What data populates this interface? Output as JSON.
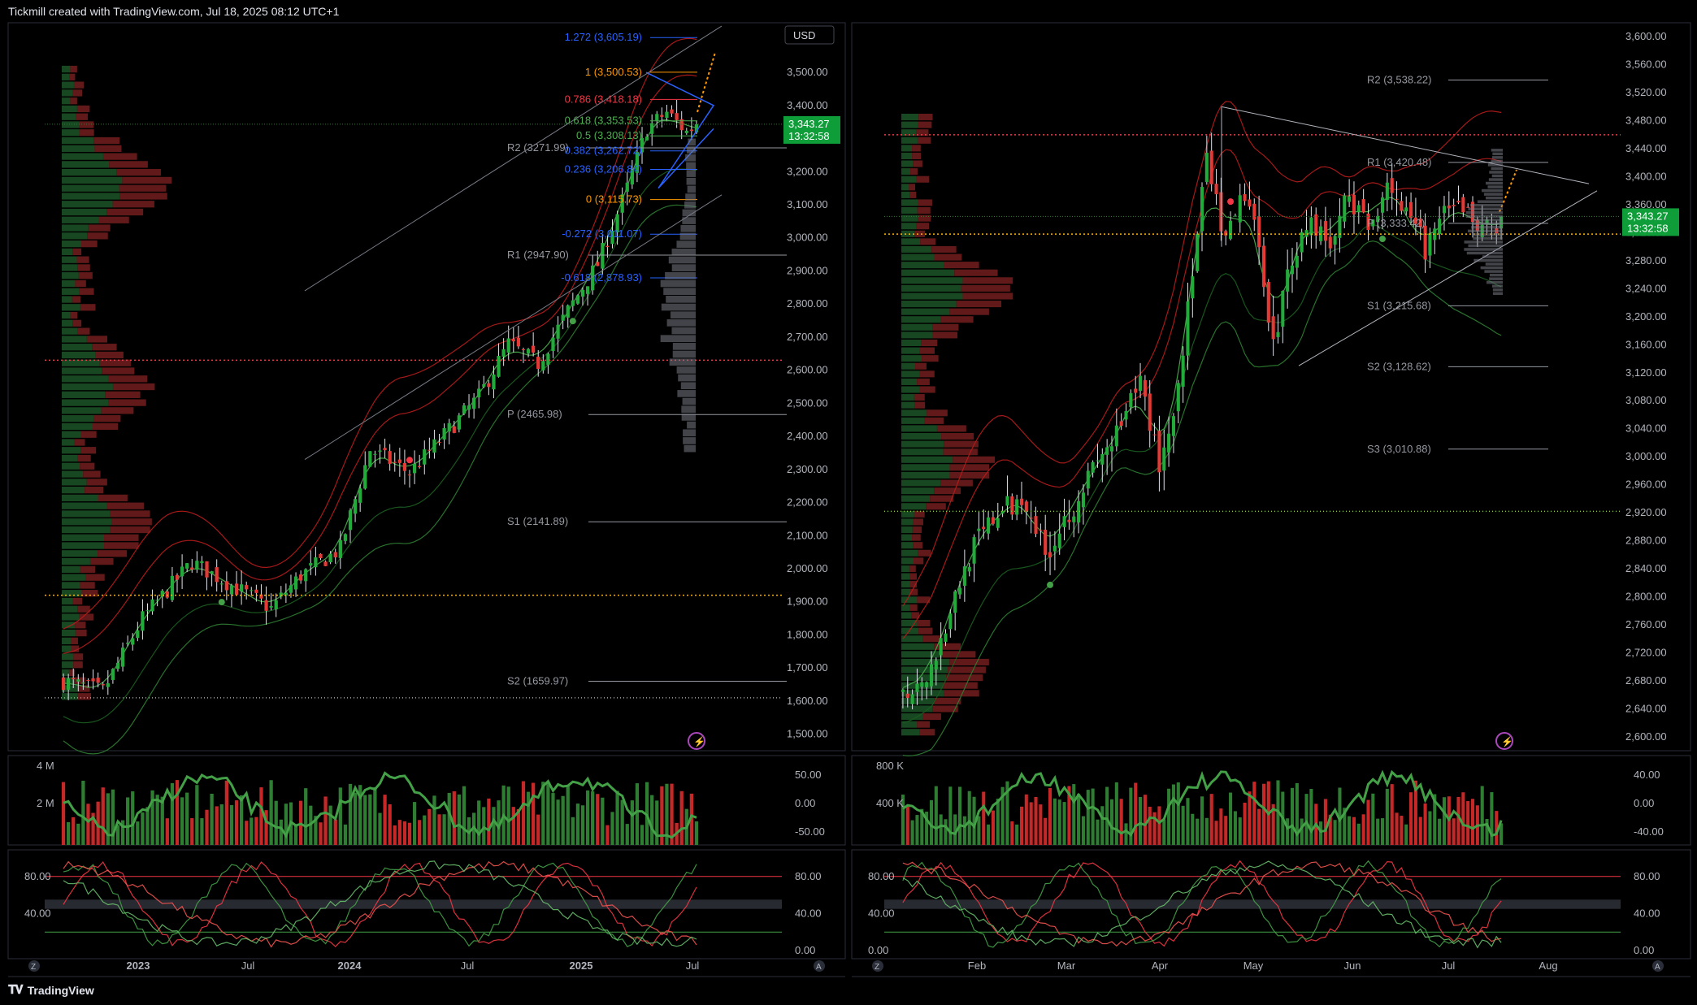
{
  "header": {
    "text": "Tickmill created with TradingView.com, Jul 18, 2025 08:12 UTC+1"
  },
  "footer": {
    "brand": "TradingView",
    "logo_icon": "tv-logo-icon"
  },
  "colors": {
    "bull": "#2e7d32",
    "bear": "#c62828",
    "bull_bright": "#22ab3a",
    "bear_bright": "#e53935",
    "fib_blue": "#2962ff",
    "fib_orange": "#ff9800",
    "fib_red": "#f23645",
    "pivot": "#9598a1",
    "price_tag": "#0f9d3a"
  },
  "chart_data": [
    {
      "panel": "left-weekly",
      "type": "candlestick",
      "currency": "USD",
      "y_ticks": [
        "1,500.00",
        "1,600.00",
        "1,700.00",
        "1,800.00",
        "1,900.00",
        "2,000.00",
        "2,100.00",
        "2,200.00",
        "2,300.00",
        "2,400.00",
        "2,500.00",
        "2,600.00",
        "2,700.00",
        "2,800.00",
        "2,900.00",
        "3,000.00",
        "3,100.00",
        "3,200.00",
        "3,300.00",
        "3,400.00",
        "3,500.00",
        "3,600.00"
      ],
      "x_ticks": [
        "2023",
        "Jul",
        "2024",
        "Jul",
        "2025",
        "Jul"
      ],
      "last_price": "3,343.27",
      "countdown": "13:32:58",
      "fib_levels": [
        {
          "label": "1.272 (3,605.19)",
          "price": 3605.19,
          "color": "#2962ff"
        },
        {
          "label": "1 (3,500.53)",
          "price": 3500.53,
          "color": "#ff9800"
        },
        {
          "label": "0.786 (3,418.18)",
          "price": 3418.18,
          "color": "#f23645"
        },
        {
          "label": "0.618 (3,353.53)",
          "price": 3353.53,
          "color": "#4caf50"
        },
        {
          "label": "0.5 (3,308.13)",
          "price": 3308.13,
          "color": "#4caf50"
        },
        {
          "label": "0.382 (3,262.72)",
          "price": 3262.72,
          "color": "#2962ff"
        },
        {
          "label": "0.236 (3,206.84)",
          "price": 3206.84,
          "color": "#2962ff"
        },
        {
          "label": "0 (3,115.73)",
          "price": 3115.73,
          "color": "#ff9800"
        },
        {
          "label": "-0.272 (3,011.07)",
          "price": 3011.07,
          "color": "#2962ff"
        },
        {
          "label": "-0.618 (2,878.93)",
          "price": 2878.93,
          "color": "#2962ff"
        }
      ],
      "pivots": [
        {
          "label": "R2 (3271.99)",
          "price": 3271.99
        },
        {
          "label": "R1 (2947.90)",
          "price": 2947.9
        },
        {
          "label": "P (2465.98)",
          "price": 2465.98
        },
        {
          "label": "S1 (2141.89)",
          "price": 2141.89
        },
        {
          "label": "S2 (1659.97)",
          "price": 1659.97
        }
      ],
      "volume_ticks": [
        "4 M",
        "2 M"
      ],
      "momentum_ticks": [
        "50.00",
        "0.00",
        "-50.00"
      ],
      "stoch_ticks": [
        "80.00",
        "40.00",
        "0.00"
      ],
      "stoch_ticks_left": [
        "80.00",
        "40.00"
      ],
      "start_price": 1660,
      "end_price": 3343.27,
      "key_points": [
        [
          0,
          1660
        ],
        [
          8,
          1630
        ],
        [
          16,
          1850
        ],
        [
          26,
          2020
        ],
        [
          34,
          1950
        ],
        [
          42,
          1880
        ],
        [
          48,
          1980
        ],
        [
          56,
          2060
        ],
        [
          62,
          2360
        ],
        [
          70,
          2290
        ],
        [
          78,
          2420
        ],
        [
          84,
          2520
        ],
        [
          90,
          2680
        ],
        [
          96,
          2620
        ],
        [
          102,
          2780
        ],
        [
          108,
          2920
        ],
        [
          114,
          3150
        ],
        [
          118,
          3330
        ],
        [
          122,
          3380
        ],
        [
          126,
          3320
        ],
        [
          128,
          3343.27
        ]
      ],
      "bar_count": 129
    },
    {
      "panel": "right-daily",
      "type": "candlestick",
      "y_ticks": [
        "2,600.00",
        "2,640.00",
        "2,680.00",
        "2,720.00",
        "2,760.00",
        "2,800.00",
        "2,840.00",
        "2,880.00",
        "2,920.00",
        "2,960.00",
        "3,000.00",
        "3,040.00",
        "3,080.00",
        "3,120.00",
        "3,160.00",
        "3,200.00",
        "3,240.00",
        "3,280.00",
        "3,320.00",
        "3,360.00",
        "3,400.00",
        "3,440.00",
        "3,480.00",
        "3,520.00",
        "3,560.00",
        "3,600.00"
      ],
      "x_ticks": [
        "Feb",
        "Mar",
        "Apr",
        "May",
        "Jun",
        "Jul",
        "Aug"
      ],
      "last_price": "3,343.27",
      "countdown": "13:32:58",
      "pivots": [
        {
          "label": "R2 (3,538.22)",
          "price": 3538.22
        },
        {
          "label": "R1 (3,420.48)",
          "price": 3420.48
        },
        {
          "label": "P (3,333.42)",
          "price": 3333.42
        },
        {
          "label": "S1 (3,215.68)",
          "price": 3215.68
        },
        {
          "label": "S2 (3,128.62)",
          "price": 3128.62
        },
        {
          "label": "S3 (3,010.88)",
          "price": 3010.88
        }
      ],
      "volume_ticks": [
        "800 K",
        "400 K"
      ],
      "momentum_ticks": [
        "40.00",
        "0.00",
        "-40.00"
      ],
      "stoch_ticks": [
        "80.00",
        "40.00",
        "0.00"
      ],
      "stoch_ticks_left": [
        "80.00",
        "40.00",
        "0.00"
      ],
      "key_points": [
        [
          0,
          2660
        ],
        [
          6,
          2700
        ],
        [
          14,
          2860
        ],
        [
          20,
          2920
        ],
        [
          26,
          2940
        ],
        [
          30,
          2860
        ],
        [
          34,
          2910
        ],
        [
          40,
          2980
        ],
        [
          46,
          3040
        ],
        [
          50,
          3110
        ],
        [
          54,
          2990
        ],
        [
          57,
          3060
        ],
        [
          60,
          3210
        ],
        [
          64,
          3420
        ],
        [
          68,
          3300
        ],
        [
          72,
          3380
        ],
        [
          76,
          3260
        ],
        [
          78,
          3160
        ],
        [
          82,
          3290
        ],
        [
          86,
          3340
        ],
        [
          90,
          3300
        ],
        [
          94,
          3380
        ],
        [
          98,
          3320
        ],
        [
          102,
          3400
        ],
        [
          106,
          3340
        ],
        [
          110,
          3300
        ],
        [
          114,
          3340
        ],
        [
          118,
          3360
        ],
        [
          122,
          3320
        ],
        [
          126,
          3343.27
        ]
      ],
      "bar_count": 127
    }
  ]
}
